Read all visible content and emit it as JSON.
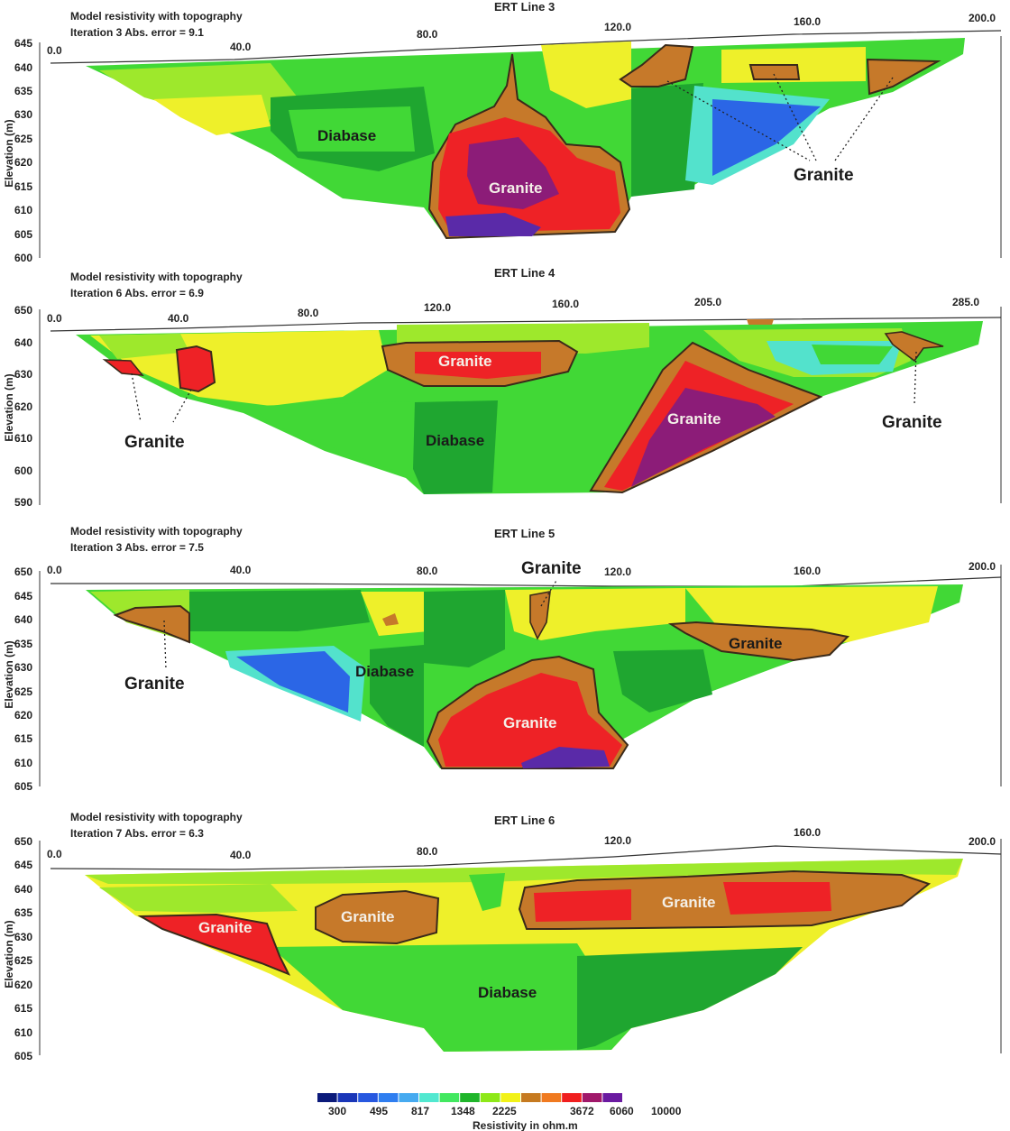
{
  "chart_data": [
    {
      "type": "heatmap",
      "title": "ERT Line 3",
      "subtitle_1": "Model resistivity with topography",
      "subtitle_2": "Iteration 3 Abs. error = 9.1",
      "ylabel": "Elevation (m)",
      "x_ticks": [
        "0.0",
        "40.0",
        "80.0",
        "120.0",
        "160.0",
        "200.0"
      ],
      "y_ticks": [
        "645",
        "640",
        "635",
        "630",
        "625",
        "620",
        "615",
        "610",
        "605",
        "600"
      ],
      "annotations": [
        "Diabase",
        "Granite",
        "Granite"
      ]
    },
    {
      "type": "heatmap",
      "title": "ERT Line 4",
      "subtitle_1": "Model resistivity with topography",
      "subtitle_2": "Iteration 6 Abs. error = 6.9",
      "ylabel": "Elevation (m)",
      "x_ticks": [
        "0.0",
        "40.0",
        "80.0",
        "120.0",
        "160.0",
        "205.0",
        "285.0"
      ],
      "y_ticks": [
        "650",
        "640",
        "630",
        "620",
        "610",
        "600",
        "590"
      ],
      "annotations": [
        "Granite",
        "Granite",
        "Granite",
        "Granite",
        "Diabase"
      ]
    },
    {
      "type": "heatmap",
      "title": "ERT Line 5",
      "subtitle_1": "Model resistivity with topography",
      "subtitle_2": "Iteration 3 Abs. error = 7.5",
      "ylabel": "Elevation (m)",
      "x_ticks": [
        "0.0",
        "40.0",
        "80.0",
        "120.0",
        "160.0",
        "200.0"
      ],
      "y_ticks": [
        "650",
        "645",
        "640",
        "635",
        "630",
        "625",
        "620",
        "615",
        "610",
        "605"
      ],
      "annotations": [
        "Granite",
        "Granite",
        "Granite",
        "Diabase",
        "Granite"
      ]
    },
    {
      "type": "heatmap",
      "title": "ERT Line 6",
      "subtitle_1": "Model resistivity with topography",
      "subtitle_2": "Iteration 7 Abs. error = 6.3",
      "ylabel": "Elevation (m)",
      "x_ticks": [
        "0.0",
        "40.0",
        "80.0",
        "120.0",
        "160.0",
        "200.0"
      ],
      "y_ticks": [
        "650",
        "645",
        "640",
        "635",
        "630",
        "625",
        "620",
        "615",
        "610",
        "605"
      ],
      "annotations": [
        "Granite",
        "Granite",
        "Granite",
        "Diabase"
      ]
    }
  ],
  "legend": {
    "title": "Resistivity in ohm.m",
    "labels": [
      "300",
      "495",
      "817",
      "1348",
      "2225",
      "3672",
      "6060",
      "10000"
    ],
    "colors": [
      "#0b1a7a",
      "#1a36b8",
      "#2758e0",
      "#2f7ef0",
      "#46aaf0",
      "#52e8d0",
      "#42e860",
      "#1fb52a",
      "#8ee818",
      "#f2f218",
      "#c67a20",
      "#f07a20",
      "#f01e1e",
      "#a0186a",
      "#6a1aa0"
    ]
  },
  "palette": {
    "green": "#41d836",
    "lime": "#9ee82c",
    "yellow": "#eef02a",
    "darkgreen": "#1fa630",
    "orange": "#c6792a",
    "red": "#ee2226",
    "purple": "#8c1c78",
    "violet": "#5a2aa8",
    "blue": "#2b66e6",
    "cyan": "#53e2cc"
  }
}
